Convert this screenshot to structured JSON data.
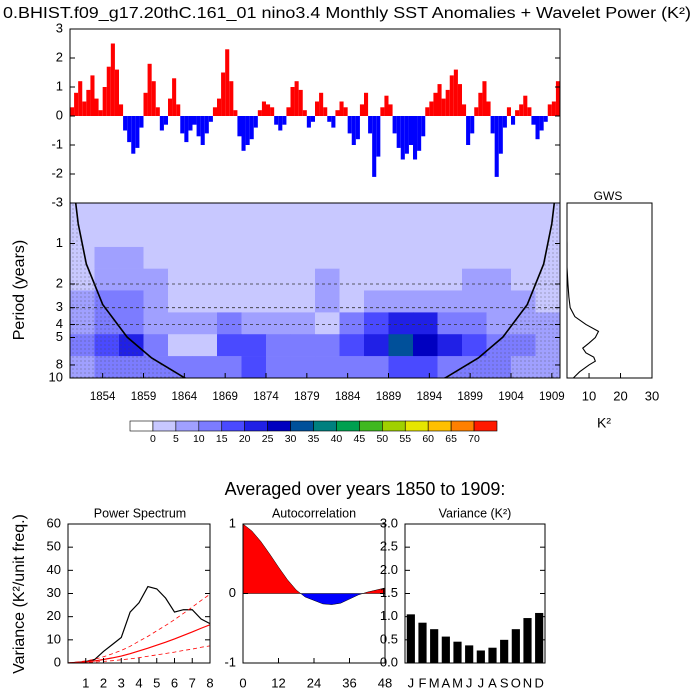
{
  "heading": "Averaged over years 1850 to 1909:",
  "chart_data": [
    {
      "type": "bar",
      "title": "0.BHIST.f09_g17.20thC.161_01 nino3.4 Monthly SST Anomalies + Wavelet Power (K²)",
      "x": [
        1850,
        1850.5,
        1851,
        1851.5,
        1852,
        1852.5,
        1853,
        1853.5,
        1854,
        1854.5,
        1855,
        1855.5,
        1856,
        1856.5,
        1857,
        1857.5,
        1858,
        1858.5,
        1859,
        1859.5,
        1860,
        1860.5,
        1861,
        1861.5,
        1862,
        1862.5,
        1863,
        1863.5,
        1864,
        1864.5,
        1865,
        1865.5,
        1866,
        1866.5,
        1867,
        1867.5,
        1868,
        1868.5,
        1869,
        1869.5,
        1870,
        1870.5,
        1871,
        1871.5,
        1872,
        1872.5,
        1873,
        1873.5,
        1874,
        1874.5,
        1875,
        1875.5,
        1876,
        1876.5,
        1877,
        1877.5,
        1878,
        1878.5,
        1879,
        1879.5,
        1880,
        1880.5,
        1881,
        1881.5,
        1882,
        1882.5,
        1883,
        1883.5,
        1884,
        1884.5,
        1885,
        1885.5,
        1886,
        1886.5,
        1887,
        1887.5,
        1888,
        1888.5,
        1889,
        1889.5,
        1890,
        1890.5,
        1891,
        1891.5,
        1892,
        1892.5,
        1893,
        1893.5,
        1894,
        1894.5,
        1895,
        1895.5,
        1896,
        1896.5,
        1897,
        1897.5,
        1898,
        1898.5,
        1899,
        1899.5,
        1900,
        1900.5,
        1901,
        1901.5,
        1902,
        1902.5,
        1903,
        1903.5,
        1904,
        1904.5,
        1905,
        1905.5,
        1906,
        1906.5,
        1907,
        1907.5,
        1908,
        1908.5,
        1909,
        1909.5
      ],
      "values": [
        0.3,
        0.8,
        1.2,
        0.5,
        0.9,
        1.4,
        0.6,
        0.2,
        1.0,
        1.7,
        2.5,
        1.6,
        0.4,
        -0.5,
        -0.9,
        -1.3,
        -1.1,
        -0.4,
        0.8,
        1.8,
        1.2,
        0.3,
        -0.5,
        -0.3,
        0.6,
        1.3,
        0.4,
        -0.6,
        -0.9,
        -0.5,
        -0.3,
        -0.7,
        -1.0,
        -0.6,
        -0.2,
        0.3,
        0.6,
        1.5,
        2.3,
        1.2,
        0.2,
        -0.7,
        -1.2,
        -1.0,
        -0.8,
        -0.4,
        0.2,
        0.5,
        0.4,
        0.3,
        -0.3,
        -0.5,
        -0.3,
        0.3,
        1.0,
        1.2,
        0.9,
        0.2,
        -0.4,
        -0.2,
        0.5,
        0.8,
        0.3,
        -0.2,
        -0.4,
        0.2,
        0.5,
        0.3,
        -0.6,
        -1.0,
        -0.8,
        0.4,
        0.8,
        -0.6,
        -2.1,
        -1.4,
        0.3,
        0.7,
        0.4,
        -0.6,
        -1.1,
        -1.5,
        -1.3,
        -1.0,
        -1.5,
        -1.2,
        -0.7,
        0.3,
        0.5,
        0.8,
        1.1,
        0.6,
        0.9,
        1.4,
        1.6,
        1.1,
        0.4,
        -1.0,
        -0.6,
        0.3,
        0.8,
        1.2,
        0.5,
        -0.6,
        -2.1,
        -1.3,
        -0.4,
        0.3,
        -0.3,
        0.2,
        0.4,
        0.7,
        0.3,
        -0.3,
        -0.8,
        -0.5,
        -0.2,
        0.4,
        0.5,
        1.2
      ],
      "pos_color": "#ff0000",
      "neg_color": "#0000ff",
      "xlim": [
        1850,
        1910
      ],
      "ylim": [
        -3,
        3
      ],
      "yticks": [
        -3,
        -2,
        -1,
        0,
        1,
        2,
        3
      ]
    },
    {
      "type": "heatmap",
      "ylabel": "Period (years)",
      "x": [
        1851.5,
        1854.5,
        1857.5,
        1860.5,
        1863.5,
        1866.5,
        1869.5,
        1872.5,
        1875.5,
        1878.5,
        1881.5,
        1884.5,
        1887.5,
        1890.5,
        1893.5,
        1896.5,
        1899.5,
        1902.5,
        1905.5,
        1908.5
      ],
      "periods": [
        0.6,
        0.88,
        1.28,
        1.85,
        2.7,
        3.92,
        5.7,
        8.29
      ],
      "power": [
        [
          2,
          2,
          2,
          2,
          2,
          2,
          2,
          2,
          2,
          2,
          2,
          2,
          2,
          2,
          2,
          2,
          2,
          2,
          2,
          2
        ],
        [
          2,
          2,
          2,
          2,
          2,
          2,
          2,
          2,
          2,
          2,
          2,
          2,
          2,
          2,
          2,
          2,
          2,
          2,
          2,
          2
        ],
        [
          3,
          5,
          6,
          4,
          3,
          3,
          3,
          3,
          3,
          3,
          3,
          3,
          3,
          3,
          3,
          3,
          3,
          3,
          3,
          3
        ],
        [
          4,
          8,
          9,
          5,
          3,
          3,
          3,
          3,
          3,
          3,
          6,
          3,
          3,
          3,
          3,
          4,
          7,
          5,
          3,
          3
        ],
        [
          8,
          10,
          11,
          6,
          4,
          4,
          4,
          4,
          4,
          4,
          5,
          4,
          6,
          5,
          5,
          8,
          9,
          6,
          5,
          4
        ],
        [
          8,
          14,
          12,
          8,
          6,
          9,
          10,
          8,
          8,
          6,
          4,
          10,
          18,
          22,
          20,
          14,
          10,
          8,
          7,
          6
        ],
        [
          10,
          18,
          22,
          12,
          4,
          4,
          16,
          15,
          12,
          14,
          10,
          16,
          24,
          30,
          28,
          22,
          16,
          12,
          10,
          8
        ],
        [
          6,
          10,
          14,
          14,
          12,
          12,
          14,
          16,
          14,
          12,
          12,
          12,
          14,
          16,
          16,
          14,
          12,
          10,
          8,
          6
        ]
      ],
      "levels": [
        0,
        5,
        10,
        15,
        20,
        25,
        30,
        35,
        40,
        45,
        50,
        55,
        60,
        65,
        70
      ],
      "colors": [
        "#ffffff",
        "#c8c8ff",
        "#a0a0ff",
        "#7c7cff",
        "#4a4aff",
        "#2020e6",
        "#0000c0",
        "#00509a",
        "#00807f",
        "#00a050",
        "#40b820",
        "#a0d000",
        "#e6e600",
        "#ffc000",
        "#ff8000",
        "#ff1a00"
      ],
      "coi": {
        "x": [
          1850.7,
          1851,
          1852,
          1854,
          1857,
          1860,
          1864,
          1868,
          1872,
          1876,
          1880,
          1884,
          1888,
          1892,
          1896,
          1900,
          1903,
          1906,
          1908,
          1909,
          1909.3
        ],
        "periods": [
          0.5,
          0.71,
          1.42,
          2.84,
          4.97,
          7.1,
          9.94,
          12.8,
          15.6,
          18.5,
          21.3,
          18.5,
          15.6,
          12.8,
          9.94,
          7.1,
          4.97,
          2.84,
          1.42,
          0.71,
          0.5
        ]
      },
      "dashed_lines": [
        2,
        3,
        4
      ],
      "xlim": [
        1850,
        1910
      ],
      "ylim": [
        0.5,
        10
      ],
      "ylog": true,
      "y_inverted": true,
      "xticks": [
        1854,
        1859,
        1864,
        1869,
        1874,
        1879,
        1884,
        1889,
        1894,
        1899,
        1904,
        1909
      ],
      "yticks": [
        1,
        2,
        3,
        4,
        5,
        8,
        10
      ]
    },
    {
      "type": "line",
      "orientation": "horizontal",
      "title": "GWS",
      "xlabel": "K²",
      "periods": [
        0.5,
        1,
        1.5,
        2,
        2.5,
        3,
        3.5,
        4,
        4.5,
        5,
        5.5,
        6,
        6.5,
        7,
        7.5,
        8,
        9,
        10
      ],
      "values": [
        2.8,
        3,
        3,
        3.3,
        3.6,
        4,
        5.5,
        9,
        13,
        12,
        10,
        8,
        9,
        11.5,
        12,
        10,
        7,
        5
      ],
      "color": "#000000",
      "xlim": [
        3,
        30
      ],
      "ylim": [
        0.5,
        10
      ],
      "ylog": true,
      "y_inverted": true,
      "xticks": [
        10,
        20,
        30
      ]
    },
    {
      "type": "line",
      "title": "Power Spectrum",
      "ylabel": "Variance (K²/unit freq.)",
      "x": [
        0,
        0.5,
        1,
        1.5,
        2,
        2.5,
        3,
        3.5,
        4,
        4.5,
        5,
        5.5,
        6,
        6.5,
        7,
        7.5,
        8
      ],
      "series": [
        {
          "color": "#000000",
          "dashed": false,
          "values": [
            0,
            0.3,
            0.6,
            1.5,
            5,
            8,
            11,
            22,
            26,
            33,
            32,
            28,
            22,
            23,
            23,
            19,
            17
          ]
        },
        {
          "color": "#ff0000",
          "dashed": false,
          "values": [
            0,
            0.2,
            0.5,
            0.9,
            1.5,
            2.2,
            3,
            4,
            5.2,
            6.4,
            7.7,
            9,
            10.4,
            11.9,
            13.4,
            15,
            16.5
          ]
        },
        {
          "color": "#ff0000",
          "dashed": true,
          "values": [
            0,
            0.4,
            0.9,
            1.6,
            2.7,
            4,
            5.4,
            7.2,
            9.4,
            11.5,
            13.9,
            16.2,
            18.7,
            21.4,
            24.1,
            27,
            29.7
          ]
        },
        {
          "color": "#ff0000",
          "dashed": true,
          "values": [
            0,
            0.1,
            0.2,
            0.4,
            0.7,
            1,
            1.4,
            1.8,
            2.3,
            2.9,
            3.5,
            4.1,
            4.7,
            5.4,
            6,
            6.8,
            7.4
          ]
        }
      ],
      "xlim": [
        0,
        8
      ],
      "ylim": [
        0,
        60
      ],
      "xticks": [
        1,
        2,
        3,
        4,
        5,
        6,
        7,
        8
      ],
      "yticks": [
        0,
        10,
        20,
        30,
        40,
        50,
        60
      ]
    },
    {
      "type": "area",
      "title": "Autocorrelation",
      "x": [
        0,
        3,
        6,
        9,
        12,
        15,
        18,
        21,
        24,
        27,
        30,
        33,
        36,
        39,
        42,
        45,
        48
      ],
      "values": [
        1,
        0.9,
        0.75,
        0.57,
        0.38,
        0.2,
        0.05,
        -0.05,
        -0.1,
        -0.15,
        -0.16,
        -0.14,
        -0.08,
        -0.02,
        0.02,
        0.05,
        0.08
      ],
      "pos_color": "#ff0000",
      "neg_color": "#0000ff",
      "xlim": [
        0,
        48
      ],
      "ylim": [
        -1,
        1
      ],
      "xticks": [
        0,
        12,
        24,
        36,
        48
      ],
      "yticks": [
        -1,
        0,
        1
      ]
    },
    {
      "type": "bar",
      "title": "Variance (K²)",
      "categories": [
        "J",
        "F",
        "M",
        "A",
        "M",
        "J",
        "J",
        "A",
        "S",
        "O",
        "N",
        "D"
      ],
      "values": [
        1.05,
        0.87,
        0.73,
        0.57,
        0.46,
        0.38,
        0.27,
        0.33,
        0.5,
        0.73,
        0.97,
        1.08
      ],
      "color": "#000000",
      "ylim": [
        0,
        3
      ],
      "yticks": [
        {
          "value": 0,
          "label": "0.0"
        },
        {
          "value": 0.5,
          "label": "0.5"
        },
        {
          "value": 1,
          "label": "1.0"
        },
        {
          "value": 1.5,
          "label": "1.5"
        },
        {
          "value": 2,
          "label": "2.0"
        },
        {
          "value": 2.5,
          "label": "2.5"
        },
        {
          "value": 3,
          "label": "3.0"
        }
      ]
    }
  ]
}
